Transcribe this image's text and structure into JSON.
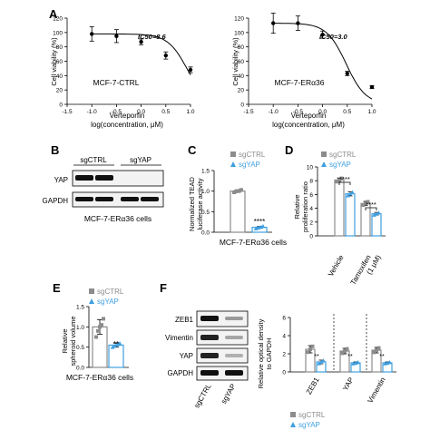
{
  "colors": {
    "ctrl": "#8c8c8c",
    "yap": "#3f9fe0",
    "axis": "#000000",
    "blot_dark": "#1a1a1a"
  },
  "legend": {
    "ctrl": "sgCTRL",
    "yap": "sgYAP"
  },
  "panels": {
    "A": {
      "letter": "A",
      "ic50_left": "IC50=8.6",
      "ic50_right": "IC50=3.0",
      "title_left": "MCF-7-CTRL",
      "title_right": "MCF-7-ERα36",
      "ylabel": "Cell viability (%)",
      "xlabel1": "Verteporfin",
      "xlabel2": "log(concentration, μM)"
    },
    "B": {
      "letter": "B",
      "lane1": "sgCTRL",
      "lane2": "sgYAP",
      "row1": "YAP",
      "row2": "GAPDH",
      "caption": "MCF-7-ERα36 cells"
    },
    "C": {
      "letter": "C",
      "ylabel1": "Normalized TEAD",
      "ylabel2": "luciferase activity",
      "sig": "****",
      "caption": "MCF-7-ERα36 cells"
    },
    "D": {
      "letter": "D",
      "ylabel1": "Relative",
      "ylabel2": "proliferation ratio",
      "sig1": "****",
      "sig2": "****",
      "cat1": "Vehicle",
      "cat2": "Tamoxifen",
      "cat2b": "(1 μM)"
    },
    "E": {
      "letter": "E",
      "ylabel1": "Relative",
      "ylabel2": "spheroid volume",
      "sig": "**",
      "caption": "MCF-7-ERα36 cells"
    },
    "F": {
      "letter": "F",
      "rows": [
        "ZEB1",
        "Vimentin",
        "YAP",
        "GAPDH"
      ],
      "lanes": [
        "sgCTRL",
        "sgYAP"
      ],
      "ylabel1": "Relative optical density",
      "ylabel2": "to GAPDH",
      "sig": [
        "**",
        "**",
        "**"
      ]
    }
  },
  "chart_data": [
    {
      "id": "A-left",
      "type": "scatter",
      "title": "MCF-7-CTRL",
      "xlabel": "Verteporfin log(concentration, μM)",
      "ylabel": "Cell viability (%)",
      "xlim": [
        -1.5,
        1.0
      ],
      "ylim": [
        0,
        120
      ],
      "xticks": [
        -1.5,
        -1.0,
        -0.5,
        0.0,
        0.5,
        1.0
      ],
      "yticks": [
        0,
        20,
        40,
        60,
        80,
        100,
        120
      ],
      "x": [
        -1.0,
        -0.5,
        0.0,
        0.5,
        1.0
      ],
      "y": [
        98,
        95,
        87,
        68,
        48
      ],
      "err": [
        10,
        9,
        4,
        5,
        4
      ],
      "fit": "sigmoid",
      "ic50_log": 0.934
    },
    {
      "id": "A-right",
      "type": "scatter",
      "title": "MCF-7-ERα36",
      "xlabel": "Verteporfin log(concentration, μM)",
      "ylabel": "Cell viability (%)",
      "xlim": [
        -1.5,
        1.0
      ],
      "ylim": [
        0,
        120
      ],
      "xticks": [
        -1.5,
        -1.0,
        -0.5,
        0.0,
        0.5,
        1.0
      ],
      "yticks": [
        0,
        20,
        40,
        60,
        80,
        100,
        120
      ],
      "x": [
        -1.0,
        -0.5,
        0.0,
        0.5,
        1.0
      ],
      "y": [
        113,
        113,
        97,
        43,
        24
      ],
      "err": [
        14,
        10,
        5,
        3,
        2
      ],
      "fit": "sigmoid",
      "ic50_log": 0.477
    },
    {
      "id": "C",
      "type": "bar",
      "categories": [
        "sgCTRL",
        "sgYAP"
      ],
      "values": [
        1.0,
        0.12
      ],
      "err": [
        0.03,
        0.02
      ],
      "ylim": [
        0,
        1.5
      ],
      "yticks": [
        0.0,
        0.5,
        1.0,
        1.5
      ],
      "points": [
        [
          0.97,
          0.99,
          1.0,
          1.01,
          1.03
        ],
        [
          0.09,
          0.11,
          0.12,
          0.13,
          0.15
        ]
      ]
    },
    {
      "id": "D",
      "type": "bar",
      "categories": [
        "Vehicle",
        "Tamoxifen (1 μM)"
      ],
      "series": [
        {
          "name": "sgCTRL",
          "values": [
            8.1,
            4.7
          ],
          "err": [
            0.3,
            0.3
          ]
        },
        {
          "name": "sgYAP",
          "values": [
            6.1,
            3.2
          ],
          "err": [
            0.3,
            0.2
          ]
        }
      ],
      "ylim": [
        0,
        10
      ],
      "yticks": [
        0,
        2,
        4,
        6,
        8,
        10
      ]
    },
    {
      "id": "E",
      "type": "bar",
      "categories": [
        "sgCTRL",
        "sgYAP"
      ],
      "values": [
        1.0,
        0.55
      ],
      "err": [
        0.18,
        0.05
      ],
      "ylim": [
        0,
        1.5
      ],
      "yticks": [
        0.0,
        0.5,
        1.0,
        1.5
      ],
      "points": [
        [
          0.75,
          0.9,
          1.0,
          1.05,
          1.2
        ],
        [
          0.5,
          0.53,
          0.55,
          0.57,
          0.6
        ]
      ]
    },
    {
      "id": "F",
      "type": "bar",
      "categories": [
        "ZEB1",
        "YAP",
        "Vimentin"
      ],
      "series": [
        {
          "name": "sgCTRL",
          "values": [
            2.5,
            2.3,
            2.4
          ],
          "err": [
            0.4,
            0.3,
            0.3
          ]
        },
        {
          "name": "sgYAP",
          "values": [
            1.1,
            1.0,
            1.0
          ],
          "err": [
            0.2,
            0.1,
            0.1
          ]
        }
      ],
      "ylim": [
        0,
        6
      ],
      "yticks": [
        0,
        2,
        4,
        6
      ]
    }
  ]
}
